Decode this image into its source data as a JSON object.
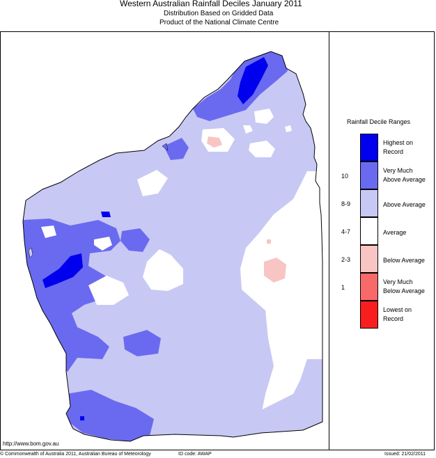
{
  "header": {
    "title": "Western Australian Rainfall Deciles      January 2011",
    "subtitle1": "Distribution Based on Gridded Data",
    "subtitle2": "Product of the National Climate Centre"
  },
  "legend": {
    "title": "Rainfall Decile Ranges",
    "items": [
      {
        "label_line1": "Highest on",
        "label_line2": "Record",
        "code": "",
        "color": "#0000ee"
      },
      {
        "label_line1": "Very Much",
        "label_line2": "Above Average",
        "code": "10",
        "color": "#6a6af0"
      },
      {
        "label_line1": "Above Average",
        "label_line2": "",
        "code": "8-9",
        "color": "#c8c8f4"
      },
      {
        "label_line1": "Average",
        "label_line2": "",
        "code": "4-7",
        "color": "#ffffff"
      },
      {
        "label_line1": "Below Average",
        "label_line2": "",
        "code": "2-3",
        "color": "#f8c4c4"
      },
      {
        "label_line1": "Very Much",
        "label_line2": "Below Average",
        "code": "1",
        "color": "#f86a6a"
      },
      {
        "label_line1": "Lowest on",
        "label_line2": "Record",
        "code": "",
        "color": "#f81e1e"
      }
    ]
  },
  "footer": {
    "url": "http://www.bom.gov.au",
    "copyright": "© Commonwealth of Australia 2011, Australian Bureau of Meteorology",
    "id_code": "ID code: AWAP",
    "issued": "Issued: 21/02/2011"
  },
  "map": {
    "region_name": "Western Australia",
    "colors": {
      "highest": "#0000ee",
      "very_much_above": "#6a6af0",
      "above": "#c8c8f4",
      "average": "#ffffff",
      "below": "#f8c4c4",
      "outline": "#000000"
    }
  }
}
